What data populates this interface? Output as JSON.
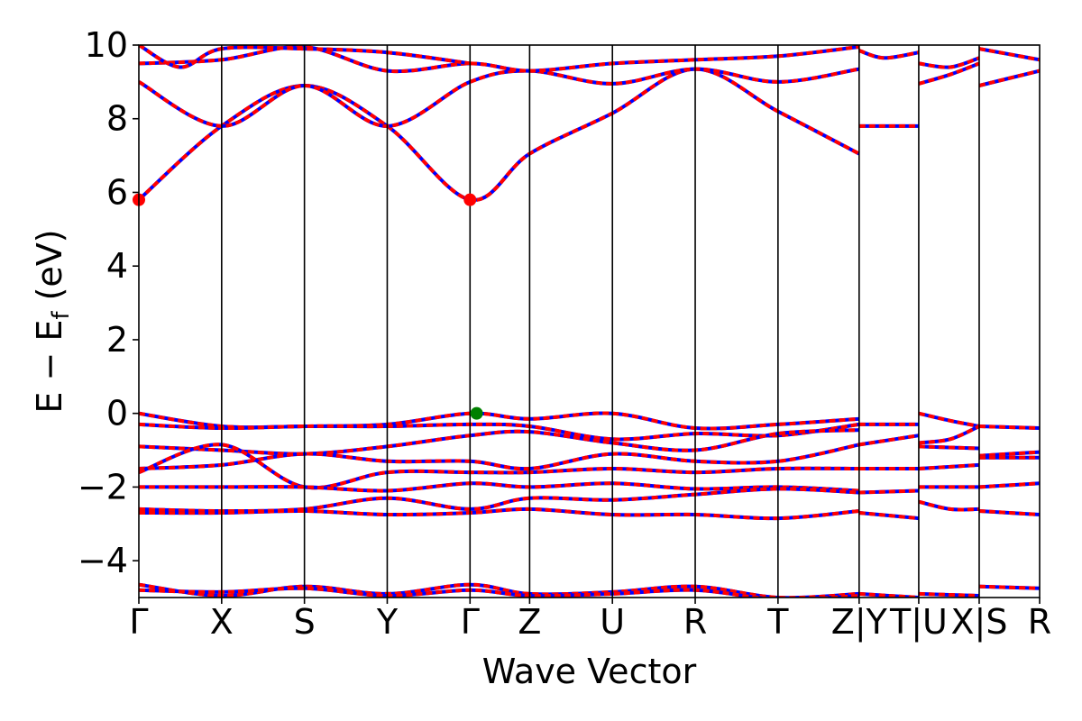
{
  "chart_data": {
    "type": "line",
    "xlabel": "Wave Vector",
    "ylabel": "E − E",
    "ylabel_sub": "f",
    "ylabel_unit": " (eV)",
    "ylim": [
      -5,
      10
    ],
    "yticks": [
      -4,
      -2,
      0,
      2,
      4,
      6,
      8,
      10
    ],
    "ytick_labels": [
      "−4",
      "−2",
      "0",
      "2",
      "4",
      "6",
      "8",
      "10"
    ],
    "kpoint_labels": [
      {
        "label": "Γ",
        "x": 0.0
      },
      {
        "label": "X",
        "x": 1.0
      },
      {
        "label": "S",
        "x": 2.0
      },
      {
        "label": "Y",
        "x": 3.0
      },
      {
        "label": "Γ",
        "x": 4.0
      },
      {
        "label": "Z",
        "x": 4.72
      },
      {
        "label": "U",
        "x": 5.72
      },
      {
        "label": "R",
        "x": 6.72
      },
      {
        "label": "T",
        "x": 7.72
      },
      {
        "label": "Z|Y",
        "x": 8.7
      },
      {
        "label": "T|U",
        "x": 9.42
      },
      {
        "label": "X|S",
        "x": 10.15
      },
      {
        "label": "R",
        "x": 10.88
      }
    ],
    "segment_breaks": [
      8.7,
      9.42,
      10.15
    ],
    "colors": {
      "spin_up": "#ff0000",
      "spin_down": "#0000ff",
      "cbm": "#ff0000",
      "vbm": "#008000",
      "line": "#000000"
    },
    "series": [],
    "bands": [
      {
        "x": [
          0,
          1,
          2,
          3,
          4,
          4.72,
          5.72,
          6.72,
          7.72,
          8.7
        ],
        "y": [
          5.8,
          7.8,
          8.9,
          7.8,
          5.8,
          7.05,
          8.15,
          9.35,
          8.2,
          7.05
        ]
      },
      {
        "x": [
          0,
          1,
          2,
          3,
          4,
          4.72,
          5.72,
          6.72,
          7.72,
          8.7
        ],
        "y": [
          9.0,
          7.8,
          8.9,
          7.8,
          9.0,
          9.3,
          8.95,
          9.35,
          9.0,
          9.35
        ]
      },
      {
        "x": [
          0,
          1,
          2,
          3,
          4,
          4.72,
          5.72,
          6.72,
          7.72,
          8.7
        ],
        "y": [
          9.5,
          9.6,
          9.95,
          9.3,
          9.5,
          9.3,
          9.5,
          9.6,
          9.7,
          9.95
        ]
      },
      {
        "x": [
          0,
          0.5,
          1,
          2,
          3,
          4
        ],
        "y": [
          10,
          9.4,
          9.9,
          9.9,
          9.8,
          9.5
        ]
      },
      {
        "x": [
          8.7,
          9.42
        ],
        "y": [
          7.8,
          7.8
        ]
      },
      {
        "x": [
          8.7,
          9.0,
          9.42
        ],
        "y": [
          9.85,
          9.65,
          9.8
        ]
      },
      {
        "x": [
          9.42,
          9.8,
          10.15
        ],
        "y": [
          8.95,
          9.2,
          9.5
        ]
      },
      {
        "x": [
          9.42,
          9.8,
          10.15
        ],
        "y": [
          9.5,
          9.4,
          9.65
        ]
      },
      {
        "x": [
          10.15,
          10.88
        ],
        "y": [
          8.9,
          9.3
        ]
      },
      {
        "x": [
          10.15,
          10.88
        ],
        "y": [
          9.9,
          9.6
        ]
      },
      {
        "x": [
          0,
          1,
          2,
          3,
          4,
          4.72,
          5.72,
          6.72,
          7.72,
          8.7
        ],
        "y": [
          0.0,
          -0.35,
          -0.35,
          -0.3,
          0.0,
          -0.15,
          0.0,
          -0.4,
          -0.3,
          -0.15
        ]
      },
      {
        "x": [
          0,
          1,
          2,
          3,
          4,
          4.72,
          5.72,
          6.72,
          7.72,
          8.7
        ],
        "y": [
          -0.3,
          -0.4,
          -0.35,
          -0.35,
          -0.3,
          -0.35,
          -0.7,
          -0.55,
          -0.6,
          -0.3
        ]
      },
      {
        "x": [
          0,
          1,
          2,
          3,
          4,
          4.72,
          5.72,
          6.72,
          7.72,
          8.7
        ],
        "y": [
          -0.9,
          -1.0,
          -1.1,
          -0.9,
          -0.6,
          -0.5,
          -0.8,
          -1.0,
          -0.55,
          -0.45
        ]
      },
      {
        "x": [
          0,
          1,
          2,
          3,
          4,
          4.72,
          5.72,
          6.72,
          7.72,
          8.7
        ],
        "y": [
          -1.5,
          -1.4,
          -1.1,
          -1.3,
          -1.3,
          -1.5,
          -1.1,
          -1.3,
          -1.3,
          -0.85
        ]
      },
      {
        "x": [
          0,
          1,
          2,
          3,
          4,
          4.72,
          5.72,
          6.72,
          7.72,
          8.7
        ],
        "y": [
          -1.6,
          -0.85,
          -2.0,
          -1.6,
          -1.6,
          -1.6,
          -1.5,
          -1.6,
          -1.5,
          -1.5
        ]
      },
      {
        "x": [
          0,
          1,
          2,
          3,
          4,
          4.72,
          5.72,
          6.72,
          7.72,
          8.7
        ],
        "y": [
          -2.0,
          -2.0,
          -2.0,
          -2.1,
          -1.9,
          -2.0,
          -1.9,
          -2.05,
          -2.0,
          -2.1
        ]
      },
      {
        "x": [
          0,
          1,
          2,
          3,
          4,
          4.72,
          5.72,
          6.72,
          7.72,
          8.7
        ],
        "y": [
          -2.6,
          -2.65,
          -2.6,
          -2.3,
          -2.6,
          -2.3,
          -2.35,
          -2.2,
          -2.05,
          -2.15
        ]
      },
      {
        "x": [
          0,
          1,
          2,
          3,
          4,
          4.72,
          5.72,
          6.72,
          7.72,
          8.7
        ],
        "y": [
          -2.7,
          -2.7,
          -2.65,
          -2.75,
          -2.7,
          -2.6,
          -2.75,
          -2.75,
          -2.85,
          -2.65
        ]
      },
      {
        "x": [
          8.7,
          9.42
        ],
        "y": [
          -0.3,
          -0.3
        ]
      },
      {
        "x": [
          8.7,
          9.42
        ],
        "y": [
          -0.85,
          -0.6
        ]
      },
      {
        "x": [
          8.7,
          9.42
        ],
        "y": [
          -1.5,
          -1.5
        ]
      },
      {
        "x": [
          8.7,
          9.42
        ],
        "y": [
          -2.15,
          -2.1
        ]
      },
      {
        "x": [
          8.7,
          9.42
        ],
        "y": [
          -2.7,
          -2.85
        ]
      },
      {
        "x": [
          9.42,
          9.8,
          10.15
        ],
        "y": [
          0.0,
          -0.2,
          -0.35
        ]
      },
      {
        "x": [
          9.42,
          9.8,
          10.15
        ],
        "y": [
          -0.8,
          -0.7,
          -0.35
        ]
      },
      {
        "x": [
          9.42,
          10.15
        ],
        "y": [
          -0.9,
          -0.95
        ]
      },
      {
        "x": [
          9.42,
          10.15
        ],
        "y": [
          -1.5,
          -1.4
        ]
      },
      {
        "x": [
          9.42,
          10.15
        ],
        "y": [
          -2.0,
          -2.0
        ]
      },
      {
        "x": [
          9.42,
          9.8,
          10.15
        ],
        "y": [
          -2.4,
          -2.6,
          -2.6
        ]
      },
      {
        "x": [
          10.15,
          10.88
        ],
        "y": [
          -0.35,
          -0.4
        ]
      },
      {
        "x": [
          10.15,
          10.88
        ],
        "y": [
          -1.15,
          -1.05
        ]
      },
      {
        "x": [
          10.15,
          10.88
        ],
        "y": [
          -1.2,
          -1.2
        ]
      },
      {
        "x": [
          10.15,
          10.88
        ],
        "y": [
          -2.0,
          -1.9
        ]
      },
      {
        "x": [
          10.15,
          10.88
        ],
        "y": [
          -2.65,
          -2.75
        ]
      },
      {
        "x": [
          0,
          1,
          2,
          3,
          4,
          4.72,
          5.72,
          6.72,
          7.72,
          8.7
        ],
        "y": [
          -4.65,
          -4.95,
          -4.7,
          -4.9,
          -4.65,
          -4.9,
          -4.85,
          -4.7,
          -5.0,
          -4.9
        ]
      },
      {
        "x": [
          0,
          1,
          2,
          3,
          4,
          4.72,
          5.72,
          6.72,
          7.72,
          8.7
        ],
        "y": [
          -4.8,
          -4.85,
          -4.75,
          -4.95,
          -4.8,
          -4.95,
          -4.9,
          -4.8,
          -5.05,
          -4.95
        ]
      },
      {
        "x": [
          8.7,
          9.42
        ],
        "y": [
          -4.9,
          -5.0
        ]
      },
      {
        "x": [
          9.42,
          10.15
        ],
        "y": [
          -4.9,
          -4.95
        ]
      },
      {
        "x": [
          10.15,
          10.88
        ],
        "y": [
          -4.7,
          -4.75
        ]
      }
    ],
    "markers": [
      {
        "name": "cbm-marker",
        "x": 0.0,
        "y": 5.8,
        "color": "#ff0000"
      },
      {
        "name": "cbm-marker",
        "x": 4.0,
        "y": 5.8,
        "color": "#ff0000"
      },
      {
        "name": "vbm-marker",
        "x": 4.08,
        "y": 0.0,
        "color": "#008000"
      }
    ]
  }
}
